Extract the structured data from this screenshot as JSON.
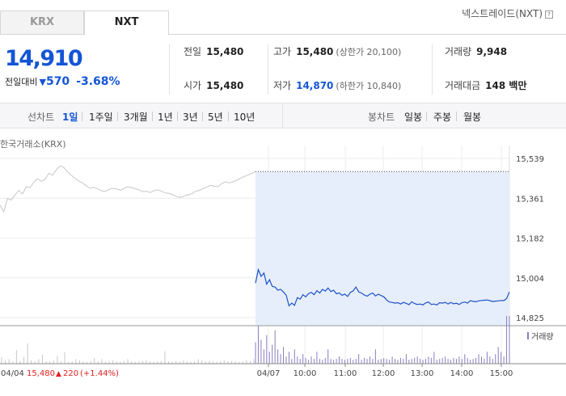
{
  "tabs": [
    {
      "label": "KRX",
      "active": false
    },
    {
      "label": "NXT",
      "active": true
    }
  ],
  "nxt_link": "넥스트레이드(NXT)",
  "nxt_help_icon": "?",
  "quote": {
    "price": "14,910",
    "change_label": "전일대비",
    "change_arrow": "▼",
    "change_amount": "570",
    "change_percent": "-3.68%"
  },
  "stats": {
    "prev_close": {
      "label": "전일",
      "value": "15,480"
    },
    "high": {
      "label": "고가",
      "value": "15,480",
      "sub": "(상한가 20,100)"
    },
    "volume": {
      "label": "거래량",
      "value": "9,948"
    },
    "open": {
      "label": "시가",
      "value": "15,480"
    },
    "low": {
      "label": "저가",
      "value": "14,870",
      "sub": "(하한가 10,840)"
    },
    "amount": {
      "label": "거래대금",
      "value": "148 백만"
    }
  },
  "toolbar": {
    "line_label": "선차트",
    "line_periods": [
      "1일",
      "1주일",
      "3개월",
      "1년",
      "3년",
      "5년",
      "10년"
    ],
    "active_period": "1일",
    "candle_label": "봉차트",
    "candle_periods": [
      "일봉",
      "주봉",
      "월봉"
    ]
  },
  "exchange_label": "한국거래소(KRX)",
  "volume_legend": "거래량",
  "colors": {
    "accent_blue": "#1455d5",
    "up_red": "#e02020",
    "prev_day_line": "#c8c8c8",
    "today_line": "#1e50c8",
    "today_fill": "#e6eefb",
    "today_volume": "#8a7cc0"
  },
  "chart_data": {
    "type": "line",
    "y_ticks": [
      "15,539",
      "15,361",
      "15,182",
      "15,004",
      "14,825"
    ],
    "ylim": [
      14825,
      15539
    ],
    "x_ticks": [
      "04/07",
      "10:00",
      "11:00",
      "12:00",
      "13:00",
      "14:00",
      "15:00"
    ],
    "prev_day": {
      "date": "04/04",
      "close": "15,480",
      "change_arrow": "▲",
      "change": "220",
      "change_pct": "(+1.44%)",
      "values": [
        15330,
        15300,
        15360,
        15352,
        15375,
        15395,
        15380,
        15412,
        15408,
        15432,
        15448,
        15436,
        15446,
        15472,
        15464,
        15488,
        15506,
        15498,
        15478,
        15463,
        15450,
        15438,
        15428,
        15415,
        15405,
        15410,
        15402,
        15394,
        15391,
        15400,
        15404,
        15402,
        15396,
        15404,
        15412,
        15408,
        15403,
        15398,
        15390,
        15392,
        15386,
        15394,
        15398,
        15392,
        15384,
        15382,
        15376,
        15368,
        15364,
        15370,
        15376,
        15380,
        15391,
        15396,
        15403,
        15410,
        15418,
        15415,
        15412,
        15426,
        15434,
        15429,
        15434,
        15441,
        15450,
        15458,
        15464,
        15472,
        15480
      ],
      "volumes": [
        0.3,
        0.15,
        0.2,
        0.1,
        0.6,
        0.12,
        0.3,
        0.9,
        0.15,
        0.1,
        0.2,
        0.4,
        0.1,
        0.1,
        0.15,
        0.35,
        0.1,
        0.5,
        0.08,
        0.1,
        0.2,
        0.15,
        0.1,
        0.08,
        0.12,
        0.25,
        0.1,
        0.2,
        0.08,
        0.1,
        0.15,
        0.1,
        0.08,
        0.12,
        0.2,
        0.1,
        0.08,
        0.1,
        0.12,
        0.15,
        0.1,
        0.08,
        0.1,
        0.12,
        0.55,
        0.1,
        0.08,
        0.12,
        0.1,
        0.15,
        0.1,
        0.08,
        0.1,
        0.2,
        0.15,
        0.1,
        0.12,
        0.1,
        0.08,
        0.1,
        0.15,
        0.1,
        0.12,
        0.1,
        0.08,
        0.1,
        0.15,
        0.12,
        0.2
      ]
    },
    "today": {
      "reference_level": 15480,
      "values": [
        14980,
        15040,
        15010,
        15025,
        14975,
        14995,
        14965,
        14962,
        14948,
        14952,
        14940,
        14925,
        14878,
        14890,
        14880,
        14915,
        14908,
        14928,
        14918,
        14933,
        14938,
        14928,
        14946,
        14935,
        14952,
        14944,
        14958,
        14942,
        14948,
        14932,
        14936,
        14925,
        14930,
        14920,
        14938,
        14945,
        14962,
        14940,
        14935,
        14926,
        14921,
        14930,
        14935,
        14922,
        14930,
        14924,
        14918,
        14904,
        14895,
        14893,
        14890,
        14892,
        14886,
        14893,
        14889,
        14883,
        14896,
        14888,
        14884,
        14886,
        14882,
        14891,
        14895,
        14884,
        14886,
        14882,
        14892,
        14890,
        14894,
        14886,
        14893,
        14887,
        14889,
        14884,
        14892,
        14895,
        14890,
        14901,
        14898,
        14896,
        14900,
        14902,
        14903,
        14904,
        14901,
        14897,
        14899,
        14900,
        14902,
        14901,
        14910,
        14940
      ],
      "volumes": [
        0.45,
        0.8,
        0.5,
        0.3,
        0.6,
        0.25,
        0.4,
        0.7,
        0.3,
        0.2,
        0.35,
        0.15,
        0.25,
        0.1,
        0.3,
        0.15,
        0.1,
        0.2,
        0.12,
        0.08,
        0.15,
        0.1,
        0.25,
        0.1,
        0.08,
        0.12,
        0.3,
        0.1,
        0.08,
        0.1,
        0.15,
        0.1,
        0.08,
        0.1,
        0.12,
        0.08,
        0.1,
        0.2,
        0.08,
        0.12,
        0.1,
        0.15,
        0.1,
        0.3,
        0.08,
        0.1,
        0.12,
        0.1,
        0.08,
        0.15,
        0.1,
        0.08,
        0.12,
        0.1,
        0.2,
        0.08,
        0.1,
        0.12,
        0.15,
        0.1,
        0.08,
        0.1,
        0.15,
        0.12,
        0.25,
        0.08,
        0.1,
        0.12,
        0.15,
        0.1,
        0.08,
        0.12,
        0.1,
        0.15,
        0.1,
        0.2,
        0.12,
        0.08,
        0.1,
        0.12,
        0.2,
        0.15,
        0.1,
        0.25,
        0.15,
        0.1,
        0.2,
        0.35,
        0.25,
        0.15,
        1.0,
        1.0
      ]
    }
  }
}
